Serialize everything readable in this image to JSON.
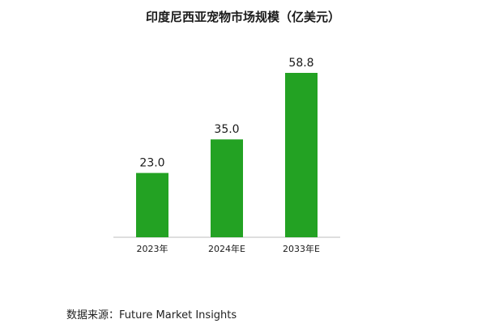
{
  "chart_data": {
    "type": "bar",
    "title": "印度尼西亚宠物市场规模（亿美元）",
    "categories": [
      "2023年",
      "2024年E",
      "2033年E"
    ],
    "values": [
      23.0,
      35.0,
      58.8
    ],
    "data_labels": [
      "23.0",
      "35.0",
      "58.8"
    ],
    "xlabel": "",
    "ylabel": "",
    "ylim": [
      0,
      70
    ],
    "grid": false,
    "legend": "none",
    "bar_color": "#23a223",
    "axis_color": "#bdbdbd"
  },
  "footer": {
    "source": "数据来源：Future Market Insights"
  }
}
